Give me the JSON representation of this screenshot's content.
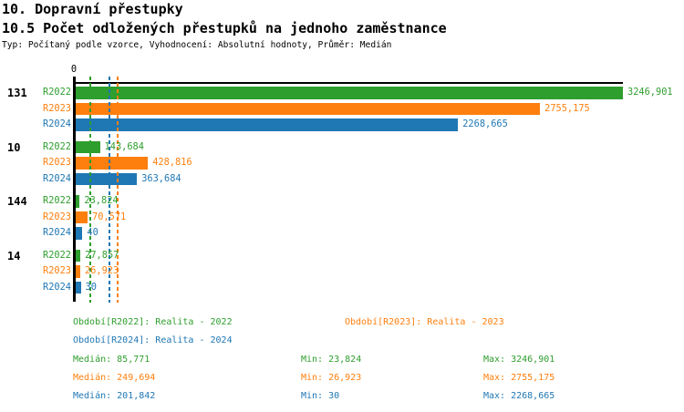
{
  "header": {
    "title": "10. Dopravní přestupky",
    "subtitle": "10.5 Počet odložených přestupků na jednoho zaměstnance",
    "meta": "Typ: Počítaný podle vzorce, Vyhodnocení: Absolutní hodnoty, Průměr: Medián"
  },
  "colors": {
    "r2022": "#2e9e2e",
    "r2023": "#ff7f0e",
    "r2024": "#1f77b4",
    "axis": "#000000"
  },
  "chart_data": {
    "type": "bar",
    "orientation": "horizontal",
    "axis_zero_label": "0",
    "xlim": [
      0,
      3246.901
    ],
    "grid": false,
    "series_labels": [
      "R2022",
      "R2023",
      "R2024"
    ],
    "series_keys": [
      "r2022",
      "r2023",
      "r2024"
    ],
    "groups": [
      {
        "label": "131",
        "values": [
          3246.901,
          2755.175,
          2268.665
        ],
        "value_labels": [
          "3246,901",
          "2755,175",
          "2268,665"
        ]
      },
      {
        "label": "10",
        "values": [
          143.684,
          428.816,
          363.684
        ],
        "value_labels": [
          "143,684",
          "428,816",
          "363,684"
        ]
      },
      {
        "label": "144",
        "values": [
          23.824,
          70.571,
          40
        ],
        "value_labels": [
          "23,824",
          "70,571",
          "40"
        ]
      },
      {
        "label": "14",
        "values": [
          27.857,
          26.923,
          30
        ],
        "value_labels": [
          "27,857",
          "26,923",
          "30"
        ]
      }
    ],
    "medians": [
      {
        "series": "R2022",
        "value": 85.771,
        "display": "85,771",
        "color_key": "r2022"
      },
      {
        "series": "R2023",
        "value": 249.694,
        "display": "249,694",
        "color_key": "r2023"
      },
      {
        "series": "R2024",
        "value": 201.842,
        "display": "201,842",
        "color_key": "r2024"
      }
    ]
  },
  "legend": {
    "periods": [
      {
        "label": "Období[R2022]: Realita - 2022",
        "color_key": "r2022"
      },
      {
        "label": "Období[R2023]: Realita - 2023",
        "color_key": "r2023"
      },
      {
        "label": "Období[R2024]: Realita - 2024",
        "color_key": "r2024"
      }
    ],
    "stats": [
      {
        "median": "Medián: 85,771",
        "min": "Min: 23,824",
        "max": "Max: 3246,901",
        "color_key": "r2022"
      },
      {
        "median": "Medián: 249,694",
        "min": "Min: 26,923",
        "max": "Max: 2755,175",
        "color_key": "r2023"
      },
      {
        "median": "Medián: 201,842",
        "min": "Min: 30",
        "max": "Max: 2268,665",
        "color_key": "r2024"
      }
    ]
  }
}
